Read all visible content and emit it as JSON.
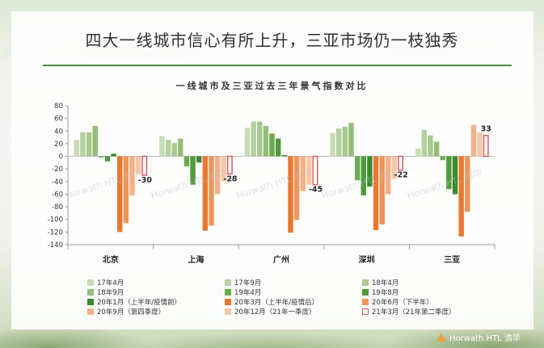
{
  "headline": "四大一线城市信心有所上升，三亚市场仍一枝独秀",
  "brand": {
    "text": "Horwath HTL 浩华",
    "color": "#e8a33a"
  },
  "watermark": {
    "text": "Horwath HTL 浩华"
  },
  "chart_data": {
    "type": "bar",
    "title": "一线城市及三亚过去三年景气指数对比",
    "categories": [
      "北京",
      "上海",
      "广州",
      "深圳",
      "三亚"
    ],
    "ylim": [
      -140,
      80
    ],
    "yticks": [
      80,
      60,
      40,
      20,
      0,
      -20,
      -40,
      -60,
      -80,
      -100,
      -120,
      -140
    ],
    "grid": false,
    "legend_position": "bottom",
    "series": [
      {
        "name": "17年4月",
        "color": "#c6dcb5",
        "style": "fill",
        "values": [
          26,
          32,
          45,
          37,
          12
        ]
      },
      {
        "name": "17年9月",
        "color": "#b4d19f",
        "style": "fill",
        "values": [
          38,
          26,
          55,
          44,
          42
        ]
      },
      {
        "name": "18年4月",
        "color": "#a8c98f",
        "style": "fill",
        "values": [
          38,
          21,
          55,
          47,
          33
        ]
      },
      {
        "name": "18年9月",
        "color": "#94bd78",
        "style": "fill",
        "values": [
          48,
          28,
          48,
          53,
          23
        ]
      },
      {
        "name": "19年4月",
        "color": "#6aab4f",
        "style": "fill",
        "values": [
          -2,
          -16,
          36,
          -38,
          -6
        ]
      },
      {
        "name": "19年8月",
        "color": "#4f9a3c",
        "style": "fill",
        "values": [
          -8,
          -45,
          28,
          -62,
          -52
        ]
      },
      {
        "name": "20年1月（上半年/疫情前）",
        "color": "#3a8a30",
        "style": "fill",
        "values": [
          4,
          -10,
          2,
          -48,
          -60
        ]
      },
      {
        "name": "20年3月（上半年/疫情后）",
        "color": "#e8792e",
        "style": "fill",
        "values": [
          -120,
          -118,
          -121,
          -117,
          -127
        ]
      },
      {
        "name": "20年6月（下半年）",
        "color": "#f0955a",
        "style": "fill",
        "values": [
          -106,
          -110,
          -101,
          -108,
          -88
        ]
      },
      {
        "name": "20年9月（第四季度）",
        "color": "#f5b08a",
        "style": "fill",
        "values": [
          -62,
          -60,
          -55,
          -60,
          50
        ]
      },
      {
        "name": "20年12月（21年一季度）",
        "color": "#f8c8a8",
        "style": "fill",
        "values": [
          -28,
          -40,
          -45,
          -36,
          38
        ]
      },
      {
        "name": "21年3月（21年第二季度）",
        "color": "#e05555",
        "style": "outline",
        "values": [
          -30,
          -28,
          -45,
          -22,
          33
        ]
      }
    ],
    "data_labels": [
      "-30",
      "-28",
      "-45",
      "-22",
      "33"
    ]
  }
}
